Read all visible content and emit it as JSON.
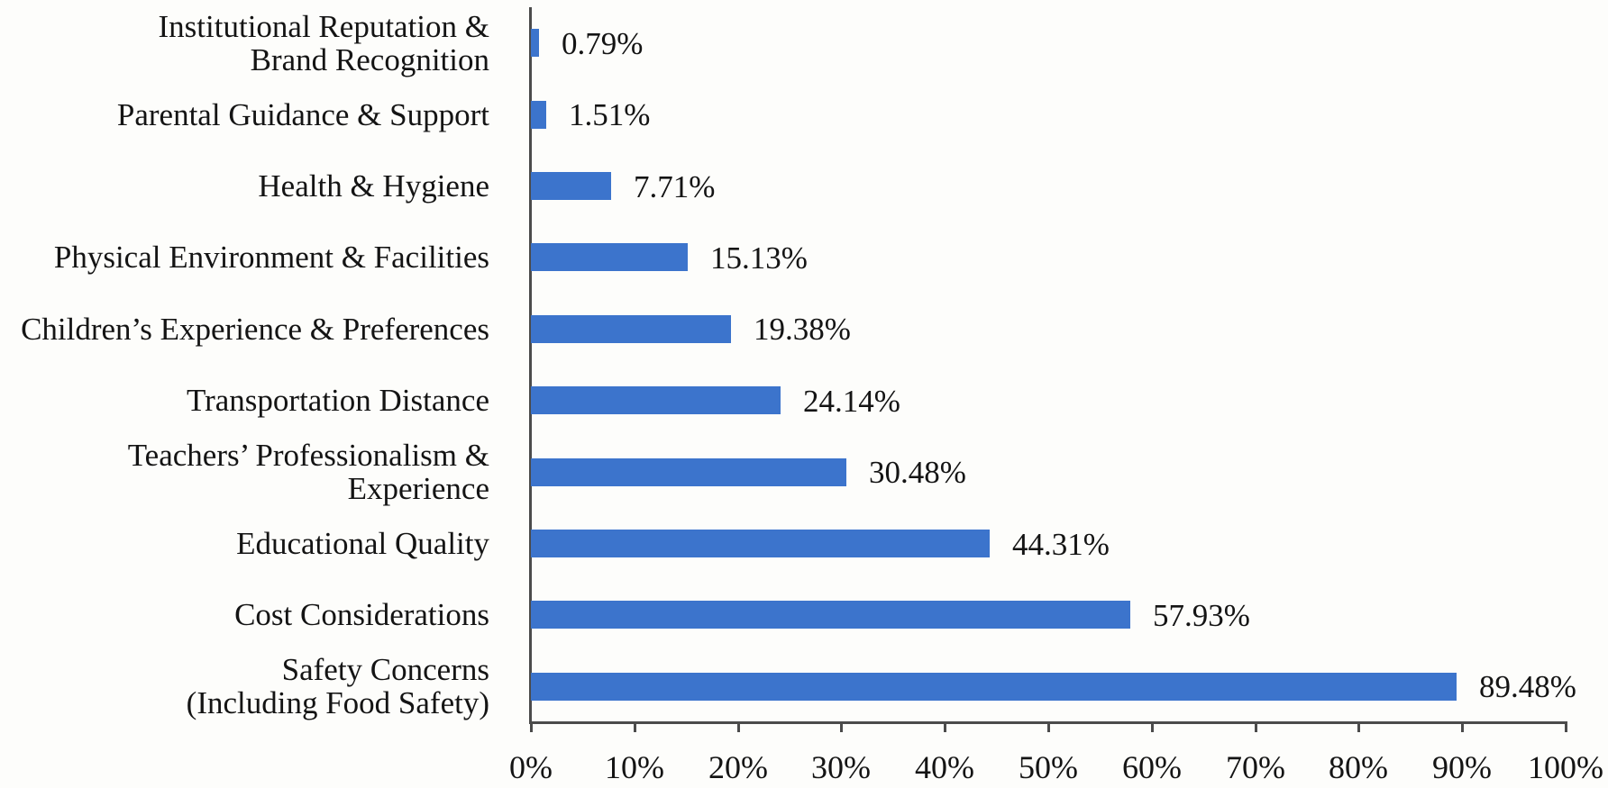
{
  "chart_data": {
    "type": "bar",
    "orientation": "horizontal",
    "title": "",
    "xlabel": "",
    "ylabel": "",
    "xlim": [
      0,
      100
    ],
    "grid": false,
    "legend": "none",
    "value_label_position": "outside-end",
    "categories": [
      "Institutional Reputation & Brand Recognition",
      "Parental Guidance & Support",
      "Health & Hygiene",
      "Physical Environment & Facilities",
      "Children’s Experience & Preferences",
      "Transportation Distance",
      "Teachers’ Professionalism & Experience",
      "Educational Quality",
      "Cost Considerations",
      "Safety Concerns (Including Food Safety)"
    ],
    "category_lines": [
      [
        "Institutional Reputation &",
        "Brand Recognition"
      ],
      [
        "Parental Guidance & Support"
      ],
      [
        "Health & Hygiene"
      ],
      [
        "Physical Environment & Facilities"
      ],
      [
        "Children’s Experience & Preferences"
      ],
      [
        "Transportation Distance"
      ],
      [
        "Teachers’ Professionalism &",
        "Experience"
      ],
      [
        "Educational Quality"
      ],
      [
        "Cost Considerations"
      ],
      [
        "Safety Concerns",
        "(Including Food Safety)"
      ]
    ],
    "values": [
      0.79,
      1.51,
      7.71,
      15.13,
      19.38,
      24.14,
      30.48,
      44.31,
      57.93,
      89.48
    ],
    "value_labels": [
      "0.79%",
      "1.51%",
      "7.71%",
      "15.13%",
      "19.38%",
      "24.14%",
      "30.48%",
      "44.31%",
      "57.93%",
      "89.48%"
    ],
    "x_tick_labels": [
      "0%",
      "10%",
      "20%",
      "30%",
      "40%",
      "50%",
      "60%",
      "70%",
      "80%",
      "90%",
      "100%"
    ],
    "colors": {
      "bar": "#3C74CC",
      "axis": "#4b4b4b",
      "text": "#141414",
      "background": "#fdfdfb"
    }
  }
}
